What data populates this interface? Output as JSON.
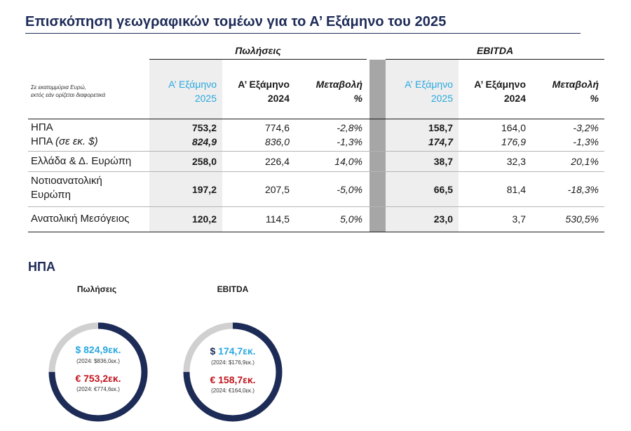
{
  "title": "Επισκόπηση γεωγραφικών τομέων για το Α’ Εξάμηνο του 2025",
  "note": "Σε εκατομμύρια Ευρώ,\nεκτός εάν ορίζεται διαφορετικά",
  "groups": {
    "sales": "Πωλήσεις",
    "ebitda": "EBITDA"
  },
  "headers": {
    "h1": [
      "Α’ Εξάμηνο",
      "2025"
    ],
    "h2": [
      "Α’ Εξάμηνο",
      "2024"
    ],
    "h3": [
      "Μεταβολή",
      "%"
    ]
  },
  "rows": [
    {
      "label": "ΗΠΑ",
      "s25": "753,2",
      "s24": "774,6",
      "sch": "-2,8%",
      "e25": "158,7",
      "e24": "164,0",
      "ech": "-3,2%"
    },
    {
      "label": "ΗΠΑ",
      "label_suffix": "(σε εκ. $)",
      "s25": "824,9",
      "s24": "836,0",
      "sch": "-1,3%",
      "e25": "174,7",
      "e24": "176,9",
      "ech": "-1,3%"
    },
    {
      "label": "Ελλάδα & Δ. Ευρώπη",
      "s25": "258,0",
      "s24": "226,4",
      "sch": "14,0%",
      "e25": "38,7",
      "e24": "32,3",
      "ech": "20,1%"
    },
    {
      "label": "Νοτιοανατολική",
      "label2": "Ευρώπη",
      "s25": "197,2",
      "s24": "207,5",
      "sch": "-5,0%",
      "e25": "66,5",
      "e24": "81,4",
      "ech": "-18,3%"
    },
    {
      "label": "Ανατολική Μεσόγειος",
      "s25": "120,2",
      "s24": "114,5",
      "sch": "5,0%",
      "e25": "23,0",
      "e24": "3,7",
      "ech": "530,5%"
    }
  ],
  "section": "ΗΠΑ",
  "donuts": [
    {
      "title": "Πωλήσεις",
      "usd": "$ 824,9εκ.",
      "usd_prev": "(2024: $836,0εκ.)",
      "eur": "€ 753,2εκ.",
      "eur_prev": "(2024: €774,6εκ.)",
      "fill_ratio": 0.75
    },
    {
      "title": "EBITDA",
      "usd": "$ 174,7εκ.",
      "usd_prev": "(2024: $176,9εκ.)",
      "eur": "€ 158,7εκ.",
      "eur_prev": "(2024: €164,0εκ.)",
      "fill_ratio": 0.75
    }
  ],
  "colors": {
    "navy": "#1d2b57",
    "cyan": "#2aa8e0",
    "red": "#c0141c",
    "gray": "#d0d0d0"
  }
}
